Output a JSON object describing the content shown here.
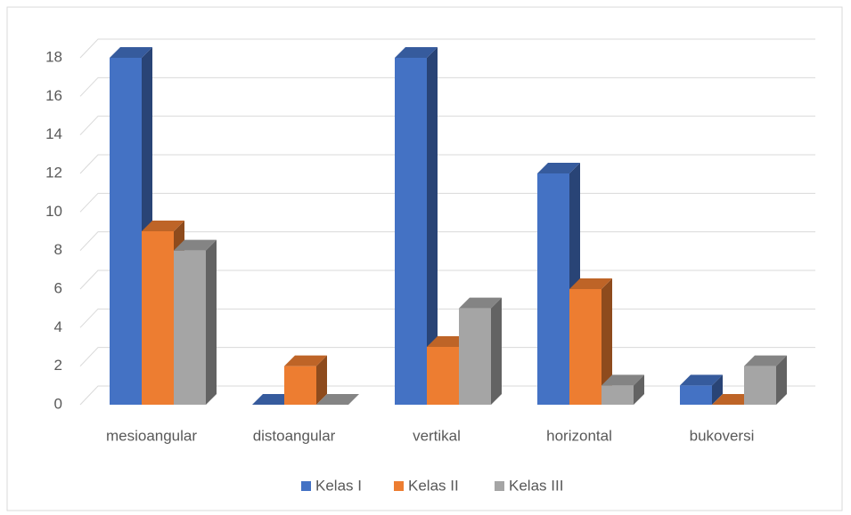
{
  "chart_data": {
    "type": "bar3d",
    "categories": [
      "mesioangular",
      "distoangular",
      "vertikal",
      "horizontal",
      "bukoversi"
    ],
    "series": [
      {
        "name": "Kelas I",
        "color": "#4472c4",
        "values": [
          18,
          0,
          18,
          12,
          1
        ]
      },
      {
        "name": "Kelas II",
        "color": "#ed7d31",
        "values": [
          9,
          2,
          3,
          6,
          0
        ]
      },
      {
        "name": "Kelas III",
        "color": "#a5a5a5",
        "values": [
          8,
          0,
          5,
          1,
          2
        ]
      }
    ],
    "ylim": [
      0,
      18
    ],
    "yticks": [
      0,
      2,
      4,
      6,
      8,
      10,
      12,
      14,
      16,
      18
    ],
    "grid": true,
    "legend": "bottom"
  }
}
